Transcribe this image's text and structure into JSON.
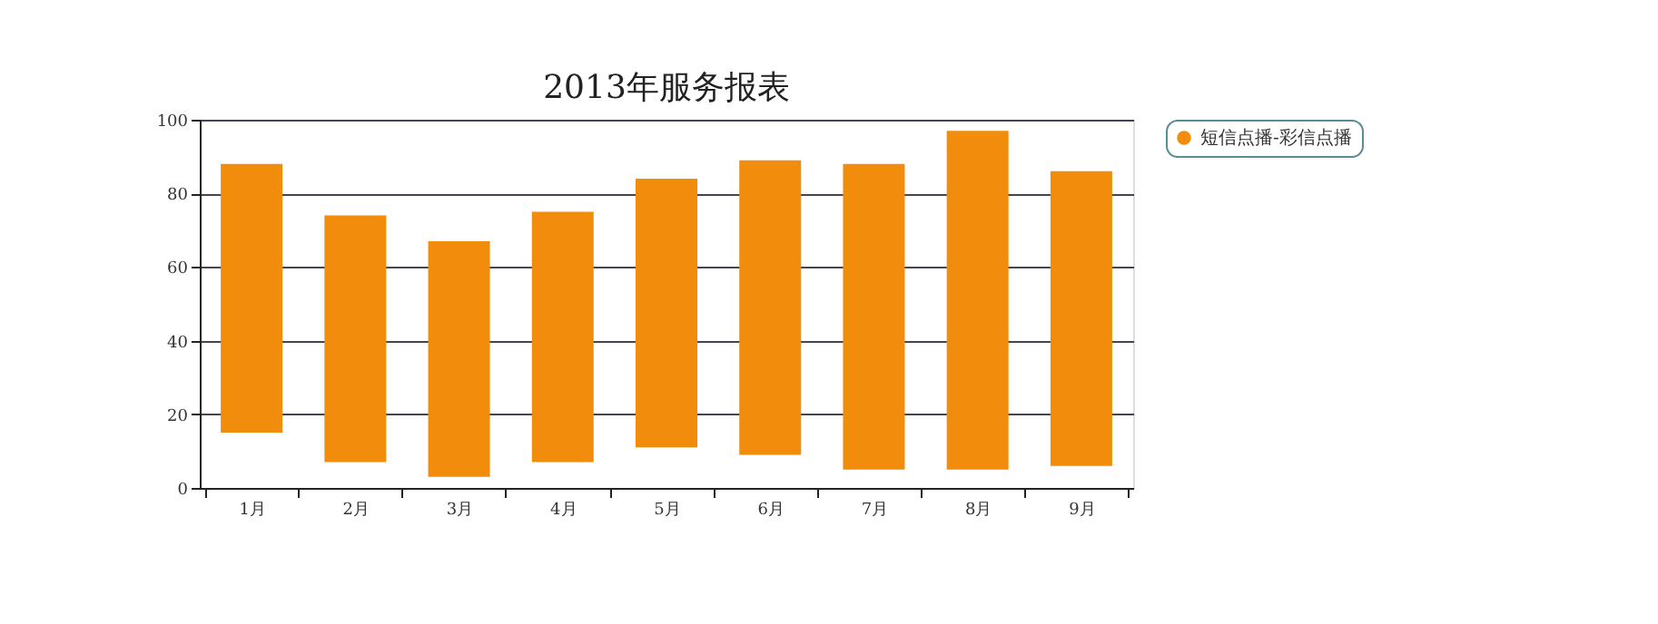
{
  "chart_data": {
    "type": "bar",
    "title": "2013年服务报表",
    "categories": [
      "1月",
      "2月",
      "3月",
      "4月",
      "5月",
      "6月",
      "7月",
      "8月",
      "9月"
    ],
    "series": [
      {
        "name": "短信点播-彩信点播",
        "color": "#f28c0c",
        "values": [
          73,
          67,
          64,
          68,
          73,
          80,
          83,
          92,
          80
        ],
        "base": [
          15,
          7,
          3,
          7,
          11,
          9,
          5,
          5,
          6
        ]
      }
    ],
    "ylim": [
      0,
      100
    ],
    "yticks": [
      0,
      20,
      40,
      60,
      80,
      100
    ],
    "grid": "y",
    "legend": "right"
  }
}
